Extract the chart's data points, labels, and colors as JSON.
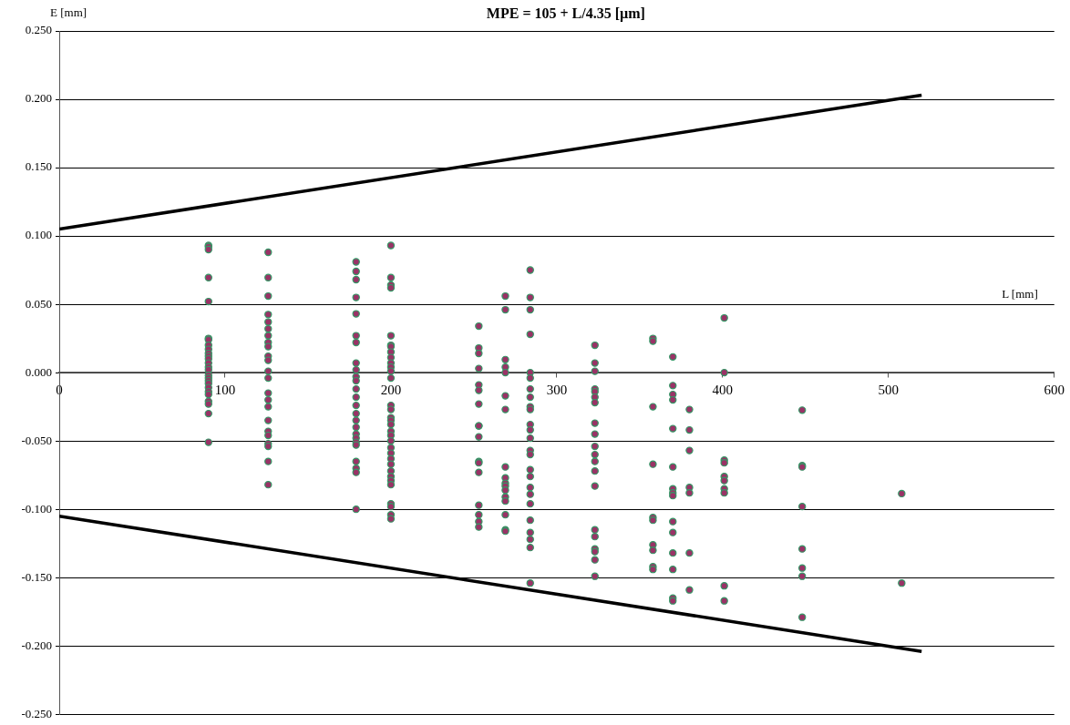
{
  "chart_data": {
    "type": "scatter",
    "title": "MPE = 105 + L/4.35 [µm]",
    "xlabel": "L [mm]",
    "ylabel": "E [mm]",
    "xlim": [
      0,
      600
    ],
    "xticks": [
      0,
      100,
      200,
      300,
      400,
      500,
      600
    ],
    "ylim": [
      -0.25,
      0.25
    ],
    "yticks": [
      {
        "value": -0.25,
        "label": "-0.250"
      },
      {
        "value": -0.2,
        "label": "-0.200"
      },
      {
        "value": -0.15,
        "label": "-0.150"
      },
      {
        "value": -0.1,
        "label": "-0.100"
      },
      {
        "value": -0.05,
        "label": "-0.050"
      },
      {
        "value": 0,
        "label": "0.000"
      },
      {
        "value": 0.05,
        "label": "0.050"
      },
      {
        "value": 0.1,
        "label": "0.100"
      },
      {
        "value": 0.15,
        "label": "0.150"
      },
      {
        "value": 0.2,
        "label": "0.200"
      },
      {
        "value": 0.25,
        "label": "0.250"
      }
    ],
    "grid": "y",
    "legend": false,
    "marker": "circle",
    "series": [
      {
        "color": "#993366",
        "x": [
          90,
          90,
          90,
          90,
          90,
          90,
          90,
          90,
          90,
          90,
          90,
          90,
          90,
          90,
          90,
          90,
          90,
          90,
          90,
          90,
          90,
          90,
          90,
          90,
          90,
          90,
          126,
          126,
          126,
          126,
          126,
          126,
          126,
          126,
          126,
          126,
          126,
          126,
          126,
          126,
          126,
          126,
          126,
          126,
          126,
          126,
          126,
          126,
          126,
          179,
          179,
          179,
          179,
          179,
          179,
          179,
          179,
          179,
          179,
          179,
          179,
          179,
          179,
          179,
          179,
          179,
          179,
          179,
          179,
          179,
          179,
          179,
          179,
          179,
          200,
          200,
          200,
          200,
          200,
          200,
          200,
          200,
          200,
          200,
          200,
          200,
          200,
          200,
          200,
          200,
          200,
          200,
          200,
          200,
          200,
          200,
          200,
          200,
          200,
          200,
          200,
          200,
          200,
          200,
          200,
          200,
          200,
          253,
          253,
          253,
          253,
          253,
          253,
          253,
          253,
          253,
          253,
          253,
          253,
          253,
          253,
          253,
          253,
          253,
          269,
          269,
          269,
          269,
          269,
          269,
          269,
          269,
          269,
          269,
          269,
          269,
          269,
          269,
          269,
          269,
          269,
          284,
          284,
          284,
          284,
          284,
          284,
          284,
          284,
          284,
          284,
          284,
          284,
          284,
          284,
          284,
          284,
          284,
          284,
          284,
          284,
          284,
          284,
          284,
          284,
          284,
          323,
          323,
          323,
          323,
          323,
          323,
          323,
          323,
          323,
          323,
          323,
          323,
          323,
          323,
          323,
          323,
          323,
          323,
          323,
          323,
          358,
          358,
          358,
          358,
          358,
          358,
          358,
          358,
          358,
          358,
          370,
          370,
          370,
          370,
          370,
          370,
          370,
          370,
          370,
          370,
          370,
          370,
          370,
          370,
          370,
          380,
          380,
          380,
          380,
          380,
          380,
          380,
          401,
          401,
          401,
          401,
          401,
          401,
          401,
          401,
          401,
          401,
          448,
          448,
          448,
          448,
          448,
          448,
          448,
          448,
          508,
          508
        ],
        "values": [
          0.093,
          0.092,
          0.09,
          0.0695,
          0.052,
          0.025,
          0.024,
          0.02,
          0.017,
          0.014,
          0.012,
          0.01,
          0.007,
          0.004,
          0.002,
          -0.002,
          -0.004,
          -0.006,
          -0.008,
          -0.011,
          -0.014,
          -0.016,
          -0.021,
          -0.023,
          -0.03,
          -0.051,
          0.088,
          0.0695,
          0.056,
          0.0425,
          0.037,
          0.032,
          0.027,
          0.022,
          0.019,
          0.012,
          0.009,
          0.001,
          -0.004,
          -0.015,
          -0.02,
          -0.025,
          -0.035,
          -0.043,
          -0.046,
          -0.052,
          -0.054,
          -0.065,
          -0.082,
          0.081,
          0.074,
          0.068,
          0.055,
          0.043,
          0.027,
          0.022,
          0.007,
          0.002,
          -0.003,
          -0.006,
          -0.012,
          -0.018,
          -0.024,
          -0.03,
          -0.035,
          -0.04,
          -0.045,
          -0.048,
          -0.051,
          -0.053,
          -0.065,
          -0.07,
          -0.073,
          -0.1,
          0.093,
          0.0695,
          0.064,
          0.062,
          0.027,
          0.02,
          0.019,
          0.015,
          0.011,
          0.007,
          0.004,
          0.001,
          -0.004,
          -0.024,
          -0.027,
          -0.033,
          -0.035,
          -0.038,
          -0.043,
          -0.046,
          -0.05,
          -0.055,
          -0.059,
          -0.063,
          -0.067,
          -0.072,
          -0.076,
          -0.079,
          -0.082,
          -0.096,
          -0.098,
          -0.104,
          -0.107,
          0.034,
          0.018,
          0.014,
          0.003,
          -0.009,
          -0.013,
          -0.023,
          -0.039,
          -0.047,
          -0.065,
          -0.066,
          -0.073,
          -0.097,
          -0.104,
          -0.109,
          -0.113,
          -0.039,
          0.056,
          0.046,
          0.0095,
          0.004,
          0,
          -0.017,
          -0.027,
          -0.069,
          -0.077,
          -0.081,
          -0.083,
          -0.086,
          -0.091,
          -0.094,
          -0.104,
          -0.115,
          -0.116,
          0.075,
          0.055,
          0.046,
          0.028,
          0,
          -0.004,
          -0.012,
          -0.018,
          -0.025,
          -0.027,
          -0.038,
          -0.042,
          -0.048,
          -0.057,
          -0.06,
          -0.071,
          -0.076,
          -0.084,
          -0.089,
          -0.096,
          -0.108,
          -0.117,
          -0.122,
          -0.128,
          -0.154,
          0.02,
          0.007,
          0.001,
          -0.012,
          -0.014,
          -0.018,
          -0.022,
          -0.037,
          -0.045,
          -0.054,
          -0.06,
          -0.065,
          -0.072,
          -0.083,
          -0.115,
          -0.12,
          -0.129,
          -0.131,
          -0.137,
          -0.149,
          0.025,
          0.023,
          -0.025,
          -0.067,
          -0.106,
          -0.108,
          -0.126,
          -0.13,
          -0.142,
          -0.144,
          0.0115,
          -0.0095,
          -0.016,
          -0.02,
          -0.041,
          -0.069,
          -0.085,
          -0.088,
          -0.09,
          -0.109,
          -0.117,
          -0.132,
          -0.144,
          -0.165,
          -0.167,
          -0.027,
          -0.042,
          -0.057,
          -0.084,
          -0.088,
          -0.132,
          -0.159,
          0.04,
          0,
          -0.064,
          -0.066,
          -0.076,
          -0.079,
          -0.085,
          -0.088,
          -0.156,
          -0.167,
          -0.0275,
          -0.068,
          -0.069,
          -0.098,
          -0.129,
          -0.143,
          -0.149,
          -0.179,
          -0.0885,
          -0.154
        ]
      },
      {
        "type": "line",
        "color": "#000000",
        "marker": "none",
        "x": [
          0,
          520
        ],
        "values": [
          0.105,
          0.203
        ]
      },
      {
        "type": "line",
        "color": "#000000",
        "marker": "none",
        "x": [
          0,
          520
        ],
        "values": [
          -0.105,
          -0.204
        ]
      }
    ]
  }
}
